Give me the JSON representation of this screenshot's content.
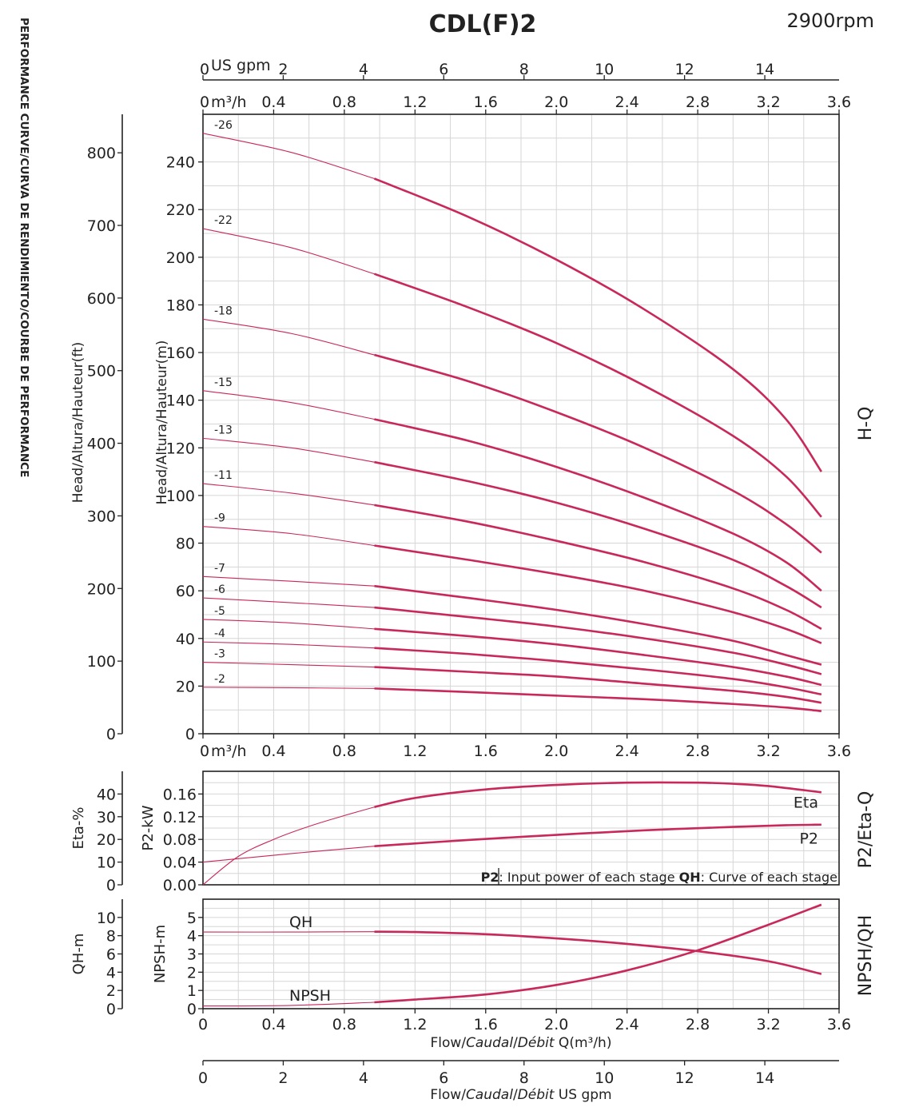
{
  "header": {
    "title": "CDL(F)2",
    "speed": "2900rpm",
    "side_label": "PERFORMANCE CURVE/CURVA DE RENDIMIENTO/COURBE DE PERFORMANCE"
  },
  "colors": {
    "curve": "#c8285a",
    "grid": "#d6d6d6",
    "axis": "#222222"
  },
  "chart_data": [
    {
      "type": "line",
      "name": "hq",
      "side_title": "H-Q",
      "x_label": "m³/h",
      "x_ticks": [
        0,
        0.4,
        0.8,
        1.2,
        1.6,
        2.0,
        2.4,
        2.8,
        3.2,
        3.6
      ],
      "x_tick_labels": [
        "0",
        "0.4",
        "0.8",
        "1.2",
        "1.6",
        "2.0",
        "2.4",
        "2.8",
        "3.2",
        "3.6"
      ],
      "xlim": [
        0,
        3.6
      ],
      "top_gpm_label": "US gpm",
      "gpm_ticks": [
        0,
        2,
        4,
        6,
        8,
        10,
        12,
        14
      ],
      "ylabel_m": "Head/Altura/Hauteur(m)",
      "ylim_m": [
        0,
        260
      ],
      "y_ticks_m": [
        0,
        20,
        40,
        60,
        80,
        100,
        120,
        140,
        160,
        180,
        200,
        220,
        240
      ],
      "ylabel_ft": "Head/Altura/Hauteur(ft)",
      "y_ticks_ft": [
        0,
        100,
        200,
        300,
        400,
        500,
        600,
        700,
        800
      ],
      "thin_until": 0.97,
      "series": [
        {
          "name": "-26",
          "x": [
            0,
            0.5,
            0.97,
            1.5,
            2.0,
            2.5,
            3.0,
            3.3,
            3.5
          ],
          "values": [
            252,
            244,
            233,
            217,
            199,
            178,
            153,
            132,
            110
          ]
        },
        {
          "name": "-22",
          "x": [
            0,
            0.5,
            0.97,
            1.5,
            2.0,
            2.5,
            3.0,
            3.3,
            3.5
          ],
          "values": [
            212,
            204,
            193,
            179,
            164,
            146,
            125,
            108,
            91
          ]
        },
        {
          "name": "-18",
          "x": [
            0,
            0.5,
            0.97,
            1.5,
            2.0,
            2.5,
            3.0,
            3.3,
            3.5
          ],
          "values": [
            174,
            168,
            159,
            148,
            135,
            120,
            102,
            88,
            76
          ]
        },
        {
          "name": "-15",
          "x": [
            0,
            0.5,
            0.97,
            1.5,
            2.0,
            2.5,
            3.0,
            3.3,
            3.5
          ],
          "values": [
            144,
            139,
            132,
            123,
            112,
            99,
            84,
            72,
            60
          ]
        },
        {
          "name": "-13",
          "x": [
            0,
            0.5,
            0.97,
            1.5,
            2.0,
            2.5,
            3.0,
            3.3,
            3.5
          ],
          "values": [
            124,
            120,
            114,
            106,
            97,
            86,
            73,
            62,
            53
          ]
        },
        {
          "name": "-11",
          "x": [
            0,
            0.5,
            0.97,
            1.5,
            2.0,
            2.5,
            3.0,
            3.3,
            3.5
          ],
          "values": [
            105,
            101,
            96,
            89,
            81,
            72,
            61,
            52,
            44
          ]
        },
        {
          "name": "-9",
          "x": [
            0,
            0.5,
            0.97,
            1.5,
            2.0,
            2.5,
            3.0,
            3.3,
            3.5
          ],
          "values": [
            87,
            84,
            79,
            73,
            67,
            60,
            51,
            44,
            38
          ]
        },
        {
          "name": "-7",
          "x": [
            0,
            0.5,
            0.97,
            1.5,
            2.0,
            2.5,
            3.0,
            3.3,
            3.5
          ],
          "values": [
            66,
            64,
            62,
            57,
            52,
            46,
            39,
            33,
            29
          ]
        },
        {
          "name": "-6",
          "x": [
            0,
            0.5,
            0.97,
            1.5,
            2.0,
            2.5,
            3.0,
            3.3,
            3.5
          ],
          "values": [
            57,
            55,
            53,
            49,
            45,
            40,
            34,
            29,
            25
          ]
        },
        {
          "name": "-5",
          "x": [
            0,
            0.5,
            0.97,
            1.5,
            2.0,
            2.5,
            3.0,
            3.3,
            3.5
          ],
          "values": [
            48,
            46.5,
            44,
            41,
            37.5,
            33,
            28,
            24,
            20.5
          ]
        },
        {
          "name": "-4",
          "x": [
            0,
            0.5,
            0.97,
            1.5,
            2.0,
            2.5,
            3.0,
            3.3,
            3.5
          ],
          "values": [
            38.5,
            37.5,
            36,
            33.5,
            30.5,
            27,
            23,
            19.5,
            16.5
          ]
        },
        {
          "name": "-3",
          "x": [
            0,
            0.5,
            0.97,
            1.5,
            2.0,
            2.5,
            3.0,
            3.3,
            3.5
          ],
          "values": [
            30,
            29,
            28,
            26,
            24,
            21,
            18,
            15.5,
            13
          ]
        },
        {
          "name": "-2",
          "x": [
            0,
            0.5,
            0.97,
            1.5,
            2.0,
            2.5,
            3.0,
            3.3,
            3.5
          ],
          "values": [
            19.5,
            19.3,
            19,
            17.5,
            16,
            14.5,
            12.5,
            11,
            9.5
          ]
        }
      ]
    },
    {
      "type": "line",
      "name": "p2eta",
      "side_title": "P2/Eta-Q",
      "xlim": [
        0,
        3.6
      ],
      "ylabel_kw": "P2-kW",
      "ylim_kw": [
        0,
        0.2
      ],
      "y_ticks_kw": [
        "0.00",
        "0.04",
        "0.08",
        "0.12",
        "0.16"
      ],
      "ylabel_eta": "Eta-%",
      "y_ticks_eta": [
        0,
        10,
        20,
        30,
        40
      ],
      "note_p2_key": "P2",
      "note_p2_text": ": Input power of each stage ",
      "note_qh_key": "QH",
      "note_qh_text": ": Curve of each stage",
      "thin_until": 0.97,
      "series": [
        {
          "name": "Eta",
          "x": [
            0,
            0.2,
            0.4,
            0.6,
            0.8,
            0.97,
            1.2,
            1.6,
            2.0,
            2.4,
            2.8,
            3.0,
            3.2,
            3.5
          ],
          "values": [
            0,
            0.05,
            0.08,
            0.103,
            0.122,
            0.137,
            0.153,
            0.168,
            0.176,
            0.18,
            0.18,
            0.178,
            0.174,
            0.163
          ]
        },
        {
          "name": "P2",
          "x": [
            0,
            0.5,
            0.97,
            1.5,
            2.0,
            2.5,
            3.0,
            3.3,
            3.5
          ],
          "values": [
            0.04,
            0.055,
            0.068,
            0.079,
            0.088,
            0.096,
            0.102,
            0.105,
            0.106
          ]
        }
      ]
    },
    {
      "type": "line",
      "name": "npshqh",
      "side_title": "NPSH/QH",
      "xlim": [
        0,
        3.6
      ],
      "ylabel_npsh": "NPSH-m",
      "ylim_npsh": [
        0,
        6
      ],
      "y_ticks_npsh": [
        0,
        1,
        2,
        3,
        4,
        5
      ],
      "ylabel_qh": "QH-m",
      "y_ticks_qh": [
        0,
        2,
        4,
        6,
        8,
        10
      ],
      "x_ticks": [
        0,
        0.4,
        0.8,
        1.2,
        1.6,
        2.0,
        2.4,
        2.8,
        3.2,
        3.6
      ],
      "x_tick_labels": [
        "0",
        "0.4",
        "0.8",
        "1.2",
        "1.6",
        "2.0",
        "2.4",
        "2.8",
        "3.2",
        "3.6"
      ],
      "x_axis_label_pre": "Flow/",
      "x_axis_label_caudal": "Caudal",
      "x_axis_label_sep": "/",
      "x_axis_label_debit": "Débit",
      "x_axis_label_unit": " Q(m³/h)",
      "thin_until": 0.97,
      "series": [
        {
          "name": "QH",
          "x": [
            0,
            0.5,
            0.97,
            1.2,
            1.6,
            2.0,
            2.4,
            2.8,
            3.2,
            3.5
          ],
          "values": [
            4.2,
            4.2,
            4.22,
            4.2,
            4.08,
            3.85,
            3.55,
            3.15,
            2.6,
            1.9
          ]
        },
        {
          "name": "NPSH",
          "x": [
            0,
            0.5,
            0.97,
            1.2,
            1.6,
            2.0,
            2.4,
            2.8,
            3.2,
            3.5
          ],
          "values": [
            0.15,
            0.18,
            0.35,
            0.5,
            0.78,
            1.3,
            2.1,
            3.2,
            4.6,
            5.7
          ]
        }
      ]
    },
    {
      "type": "axis",
      "name": "gpm-axis",
      "ticks": [
        0,
        2,
        4,
        6,
        8,
        10,
        12,
        14
      ],
      "xlim": [
        0,
        15.85
      ],
      "x_axis_label_pre": "Flow/",
      "x_axis_label_caudal": "Caudal",
      "x_axis_label_sep": "/",
      "x_axis_label_debit": "Débit",
      "x_axis_label_unit": "  US gpm"
    }
  ]
}
